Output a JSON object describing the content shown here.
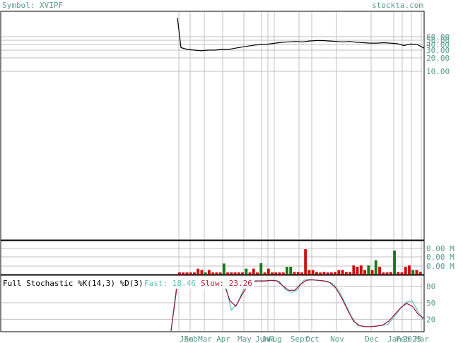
{
  "header": {
    "symbol_label": "Symbol: XVIPF",
    "site": "stockta.com"
  },
  "colors": {
    "text_teal": "#5a9a8a",
    "grid": "#c0c0c0",
    "frame": "#000000",
    "price_line": "#000000",
    "vol_up": "#1a7a1a",
    "vol_down": "#cc1010",
    "fast_line": "#5abfb0",
    "slow_line": "#a01040",
    "slow_label": "#c0203a"
  },
  "chart_data": [
    {
      "type": "line",
      "panel": "price",
      "scale": "log",
      "y_ticks": [
        "60.00",
        "50.00",
        "40.00",
        "30.00",
        "20.00",
        "10.00"
      ],
      "x_ticks": [
        "Jan",
        "Feb",
        "Mar",
        "Apr",
        "May",
        "Jun",
        "Jul",
        "Aug",
        "Sept",
        "Oct",
        "Nov",
        "Dec",
        "Jan",
        "Feb",
        "2025",
        "Mar"
      ],
      "series": [
        {
          "values": [
            160,
            34,
            31,
            30,
            29,
            30,
            30,
            31,
            31,
            33,
            35,
            37,
            39,
            40,
            41,
            43,
            45,
            46,
            47,
            46,
            48,
            49,
            49,
            48,
            47,
            46,
            47,
            45,
            44,
            43,
            43,
            44,
            43,
            42,
            38,
            41,
            40,
            33
          ]
        }
      ]
    },
    {
      "type": "bar",
      "panel": "volume",
      "y_ticks": [
        "0.00 M",
        "0.00 M",
        "0.00 M"
      ],
      "bars": [
        {
          "v": 0.05,
          "up": false
        },
        {
          "v": 0.05,
          "up": false
        },
        {
          "v": 0.05,
          "up": false
        },
        {
          "v": 0.05,
          "up": false
        },
        {
          "v": 0.05,
          "up": false
        },
        {
          "v": 0.18,
          "up": false
        },
        {
          "v": 0.14,
          "up": false
        },
        {
          "v": 0.05,
          "up": true
        },
        {
          "v": 0.14,
          "up": false
        },
        {
          "v": 0.05,
          "up": false
        },
        {
          "v": 0.05,
          "up": false
        },
        {
          "v": 0.05,
          "up": false
        },
        {
          "v": 0.34,
          "up": true
        },
        {
          "v": 0.05,
          "up": false
        },
        {
          "v": 0.05,
          "up": false
        },
        {
          "v": 0.05,
          "up": false
        },
        {
          "v": 0.05,
          "up": false
        },
        {
          "v": 0.05,
          "up": false
        },
        {
          "v": 0.18,
          "up": true
        },
        {
          "v": 0.05,
          "up": false
        },
        {
          "v": 0.18,
          "up": false
        },
        {
          "v": 0.05,
          "up": false
        },
        {
          "v": 0.35,
          "up": true
        },
        {
          "v": 0.05,
          "up": false
        },
        {
          "v": 0.18,
          "up": false
        },
        {
          "v": 0.05,
          "up": false
        },
        {
          "v": 0.05,
          "up": false
        },
        {
          "v": 0.05,
          "up": false
        },
        {
          "v": 0.05,
          "up": false
        },
        {
          "v": 0.24,
          "up": true
        },
        {
          "v": 0.24,
          "up": true
        },
        {
          "v": 0.08,
          "up": false
        },
        {
          "v": 0.08,
          "up": false
        },
        {
          "v": 0.05,
          "up": false
        },
        {
          "v": 0.78,
          "up": false
        },
        {
          "v": 0.14,
          "up": false
        },
        {
          "v": 0.14,
          "up": false
        },
        {
          "v": 0.08,
          "up": false
        },
        {
          "v": 0.05,
          "up": false
        },
        {
          "v": 0.08,
          "up": false
        },
        {
          "v": 0.05,
          "up": false
        },
        {
          "v": 0.05,
          "up": false
        },
        {
          "v": 0.08,
          "up": false
        },
        {
          "v": 0.14,
          "up": false
        },
        {
          "v": 0.14,
          "up": false
        },
        {
          "v": 0.08,
          "up": false
        },
        {
          "v": 0.08,
          "up": false
        },
        {
          "v": 0.28,
          "up": false
        },
        {
          "v": 0.24,
          "up": false
        },
        {
          "v": 0.28,
          "up": false
        },
        {
          "v": 0.14,
          "up": false
        },
        {
          "v": 0.28,
          "up": true
        },
        {
          "v": 0.14,
          "up": false
        },
        {
          "v": 0.44,
          "up": true
        },
        {
          "v": 0.24,
          "up": false
        },
        {
          "v": 0.05,
          "up": false
        },
        {
          "v": 0.05,
          "up": false
        },
        {
          "v": 0.08,
          "up": false
        },
        {
          "v": 0.74,
          "up": true
        },
        {
          "v": 0.08,
          "up": false
        },
        {
          "v": 0.05,
          "up": false
        },
        {
          "v": 0.24,
          "up": false
        },
        {
          "v": 0.28,
          "up": false
        },
        {
          "v": 0.14,
          "up": true
        },
        {
          "v": 0.14,
          "up": false
        },
        {
          "v": 0.08,
          "up": false
        }
      ]
    },
    {
      "type": "line",
      "panel": "stochastic",
      "title": "Full Stochastic %K(14,3) %D(3)",
      "fast_label": "Fast: 18.46",
      "slow_label": "Slow: 23.26",
      "y_ticks": [
        "80",
        "50",
        "20"
      ],
      "ylim": [
        0,
        100
      ],
      "series": [
        {
          "name": "Fast",
          "values": [
            2,
            90,
            96,
            94,
            90,
            87,
            86,
            86,
            87,
            86,
            38,
            50,
            75,
            88,
            92,
            90,
            91,
            92,
            90,
            75,
            70,
            75,
            92,
            94,
            92,
            91,
            90,
            85,
            70,
            48,
            25,
            10,
            8,
            8,
            9,
            10,
            12,
            25,
            40,
            52,
            55,
            35,
            18
          ]
        },
        {
          "name": "Slow",
          "values": [
            0,
            80,
            94,
            95,
            92,
            88,
            87,
            86,
            86,
            86,
            55,
            45,
            65,
            82,
            90,
            91,
            91,
            92,
            91,
            82,
            74,
            74,
            85,
            92,
            93,
            92,
            91,
            88,
            78,
            60,
            38,
            18,
            10,
            8,
            8,
            9,
            11,
            18,
            30,
            42,
            50,
            45,
            30,
            23
          ]
        }
      ]
    }
  ]
}
